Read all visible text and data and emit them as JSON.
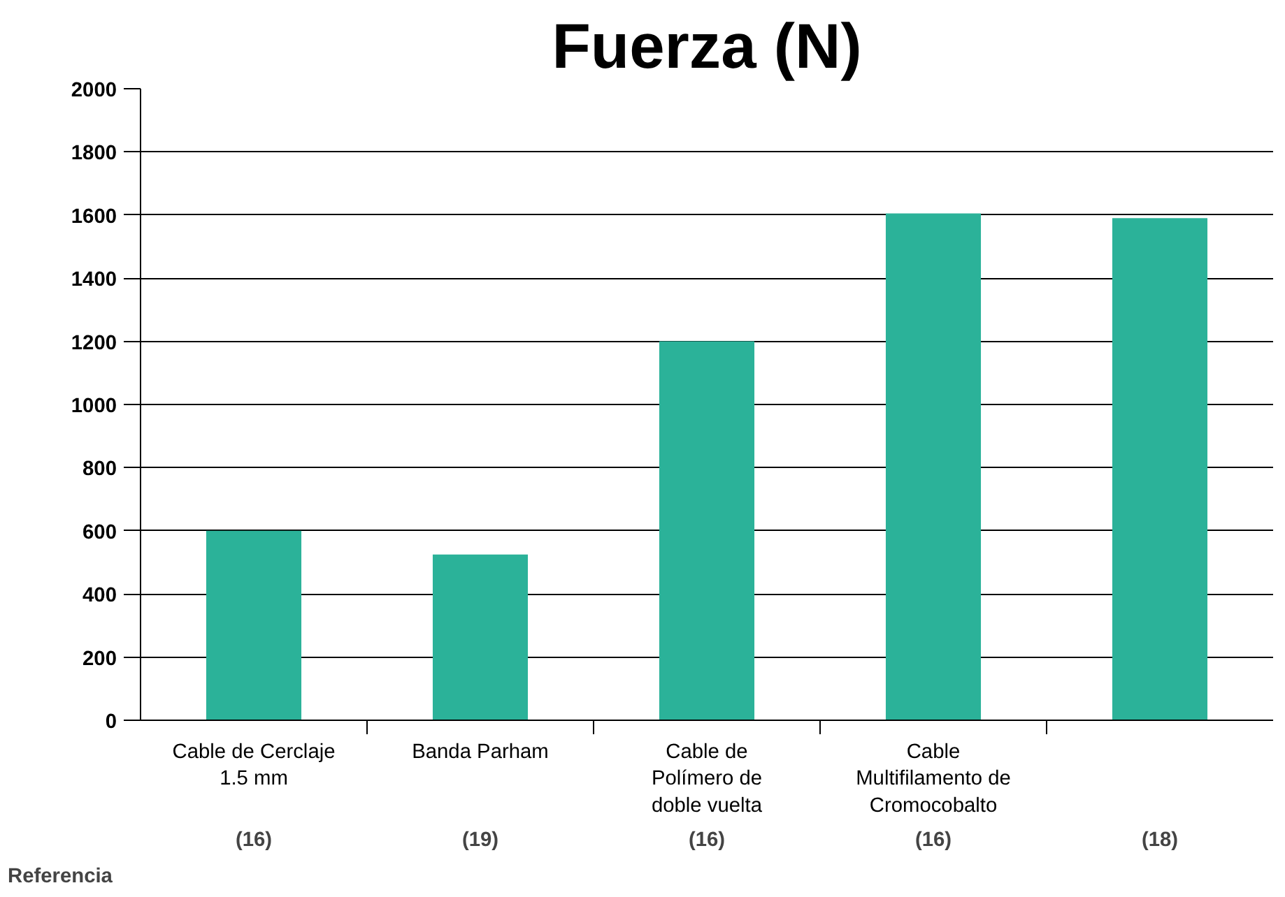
{
  "chart_data": {
    "type": "bar",
    "title": "Fuerza (N)",
    "categories": [
      "Cable de Cerclaje\n1.5 mm",
      "Banda Parham",
      "Cable de\nPolímero de\ndoble vuelta",
      "Cable\nMultifilamento de\nCromocobalto",
      null
    ],
    "values": [
      600,
      525,
      1200,
      1605,
      1590
    ],
    "color": "#2bb299",
    "ylim": [
      0,
      2000
    ],
    "yticks": [
      0,
      200,
      400,
      600,
      800,
      1000,
      1200,
      1400,
      1600,
      1800,
      2000
    ],
    "grid": "y",
    "annotations": [
      "Referencia",
      "(16)",
      "(19)",
      "(16)",
      "(16)",
      "(18)"
    ]
  }
}
